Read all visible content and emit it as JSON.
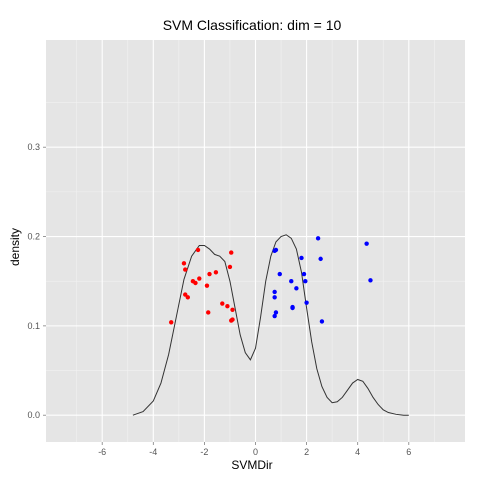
{
  "chart_data": {
    "type": "scatter",
    "title": "SVM Classification: dim = 10",
    "xlabel": "SVMDir",
    "ylabel": "density",
    "xlim": [
      -8.2,
      8.2
    ],
    "ylim": [
      -0.03,
      0.42
    ],
    "x_ticks": [
      -6,
      -4,
      -2,
      0,
      2,
      4,
      6
    ],
    "y_ticks": [
      0.0,
      0.1,
      0.2,
      0.3
    ],
    "y_tick_labels": [
      "0.0",
      "0.1",
      "0.2",
      "0.3"
    ],
    "grid": true,
    "legend": "none",
    "background_color": "#E5E5E5",
    "series": [
      {
        "color": "#FF0000",
        "points": [
          [
            -3.3,
            0.104
          ],
          [
            -2.8,
            0.17
          ],
          [
            -2.75,
            0.163
          ],
          [
            -2.75,
            0.135
          ],
          [
            -2.65,
            0.132
          ],
          [
            -2.45,
            0.15
          ],
          [
            -2.35,
            0.148
          ],
          [
            -2.25,
            0.185
          ],
          [
            -2.2,
            0.153
          ],
          [
            -1.9,
            0.145
          ],
          [
            -1.85,
            0.115
          ],
          [
            -1.8,
            0.158
          ],
          [
            -1.55,
            0.16
          ],
          [
            -1.3,
            0.125
          ],
          [
            -1.1,
            0.122
          ],
          [
            -1.0,
            0.166
          ],
          [
            -0.95,
            0.182
          ],
          [
            -0.9,
            0.118
          ],
          [
            -0.95,
            0.106
          ],
          [
            -0.9,
            0.107
          ]
        ]
      },
      {
        "color": "#0000FF",
        "points": [
          [
            0.75,
            0.184
          ],
          [
            0.8,
            0.185
          ],
          [
            0.75,
            0.138
          ],
          [
            0.75,
            0.132
          ],
          [
            0.8,
            0.115
          ],
          [
            0.75,
            0.111
          ],
          [
            0.95,
            0.158
          ],
          [
            1.4,
            0.15
          ],
          [
            1.45,
            0.121
          ],
          [
            1.45,
            0.12
          ],
          [
            1.6,
            0.142
          ],
          [
            1.8,
            0.176
          ],
          [
            1.9,
            0.158
          ],
          [
            1.95,
            0.15
          ],
          [
            2.0,
            0.126
          ],
          [
            2.45,
            0.198
          ],
          [
            2.55,
            0.175
          ],
          [
            2.6,
            0.105
          ],
          [
            4.35,
            0.192
          ],
          [
            4.5,
            0.151
          ]
        ]
      }
    ],
    "density_curve": {
      "color": "#333333",
      "x": [
        -4.8,
        -4.4,
        -4.0,
        -3.7,
        -3.4,
        -3.1,
        -2.8,
        -2.5,
        -2.2,
        -2.0,
        -1.8,
        -1.6,
        -1.4,
        -1.2,
        -1.0,
        -0.8,
        -0.6,
        -0.4,
        -0.2,
        0.0,
        0.2,
        0.4,
        0.6,
        0.8,
        1.0,
        1.2,
        1.4,
        1.6,
        1.8,
        2.0,
        2.2,
        2.4,
        2.6,
        2.8,
        3.0,
        3.2,
        3.4,
        3.6,
        3.8,
        4.0,
        4.2,
        4.4,
        4.6,
        4.8,
        5.0,
        5.2,
        5.5,
        5.8,
        6.0
      ],
      "y": [
        0.0,
        0.004,
        0.016,
        0.036,
        0.068,
        0.11,
        0.152,
        0.178,
        0.19,
        0.19,
        0.186,
        0.18,
        0.178,
        0.172,
        0.15,
        0.12,
        0.09,
        0.07,
        0.062,
        0.075,
        0.11,
        0.15,
        0.178,
        0.194,
        0.2,
        0.202,
        0.198,
        0.186,
        0.16,
        0.12,
        0.082,
        0.052,
        0.032,
        0.02,
        0.014,
        0.015,
        0.02,
        0.028,
        0.036,
        0.04,
        0.038,
        0.03,
        0.02,
        0.012,
        0.006,
        0.003,
        0.001,
        0.0,
        0.0
      ]
    }
  }
}
